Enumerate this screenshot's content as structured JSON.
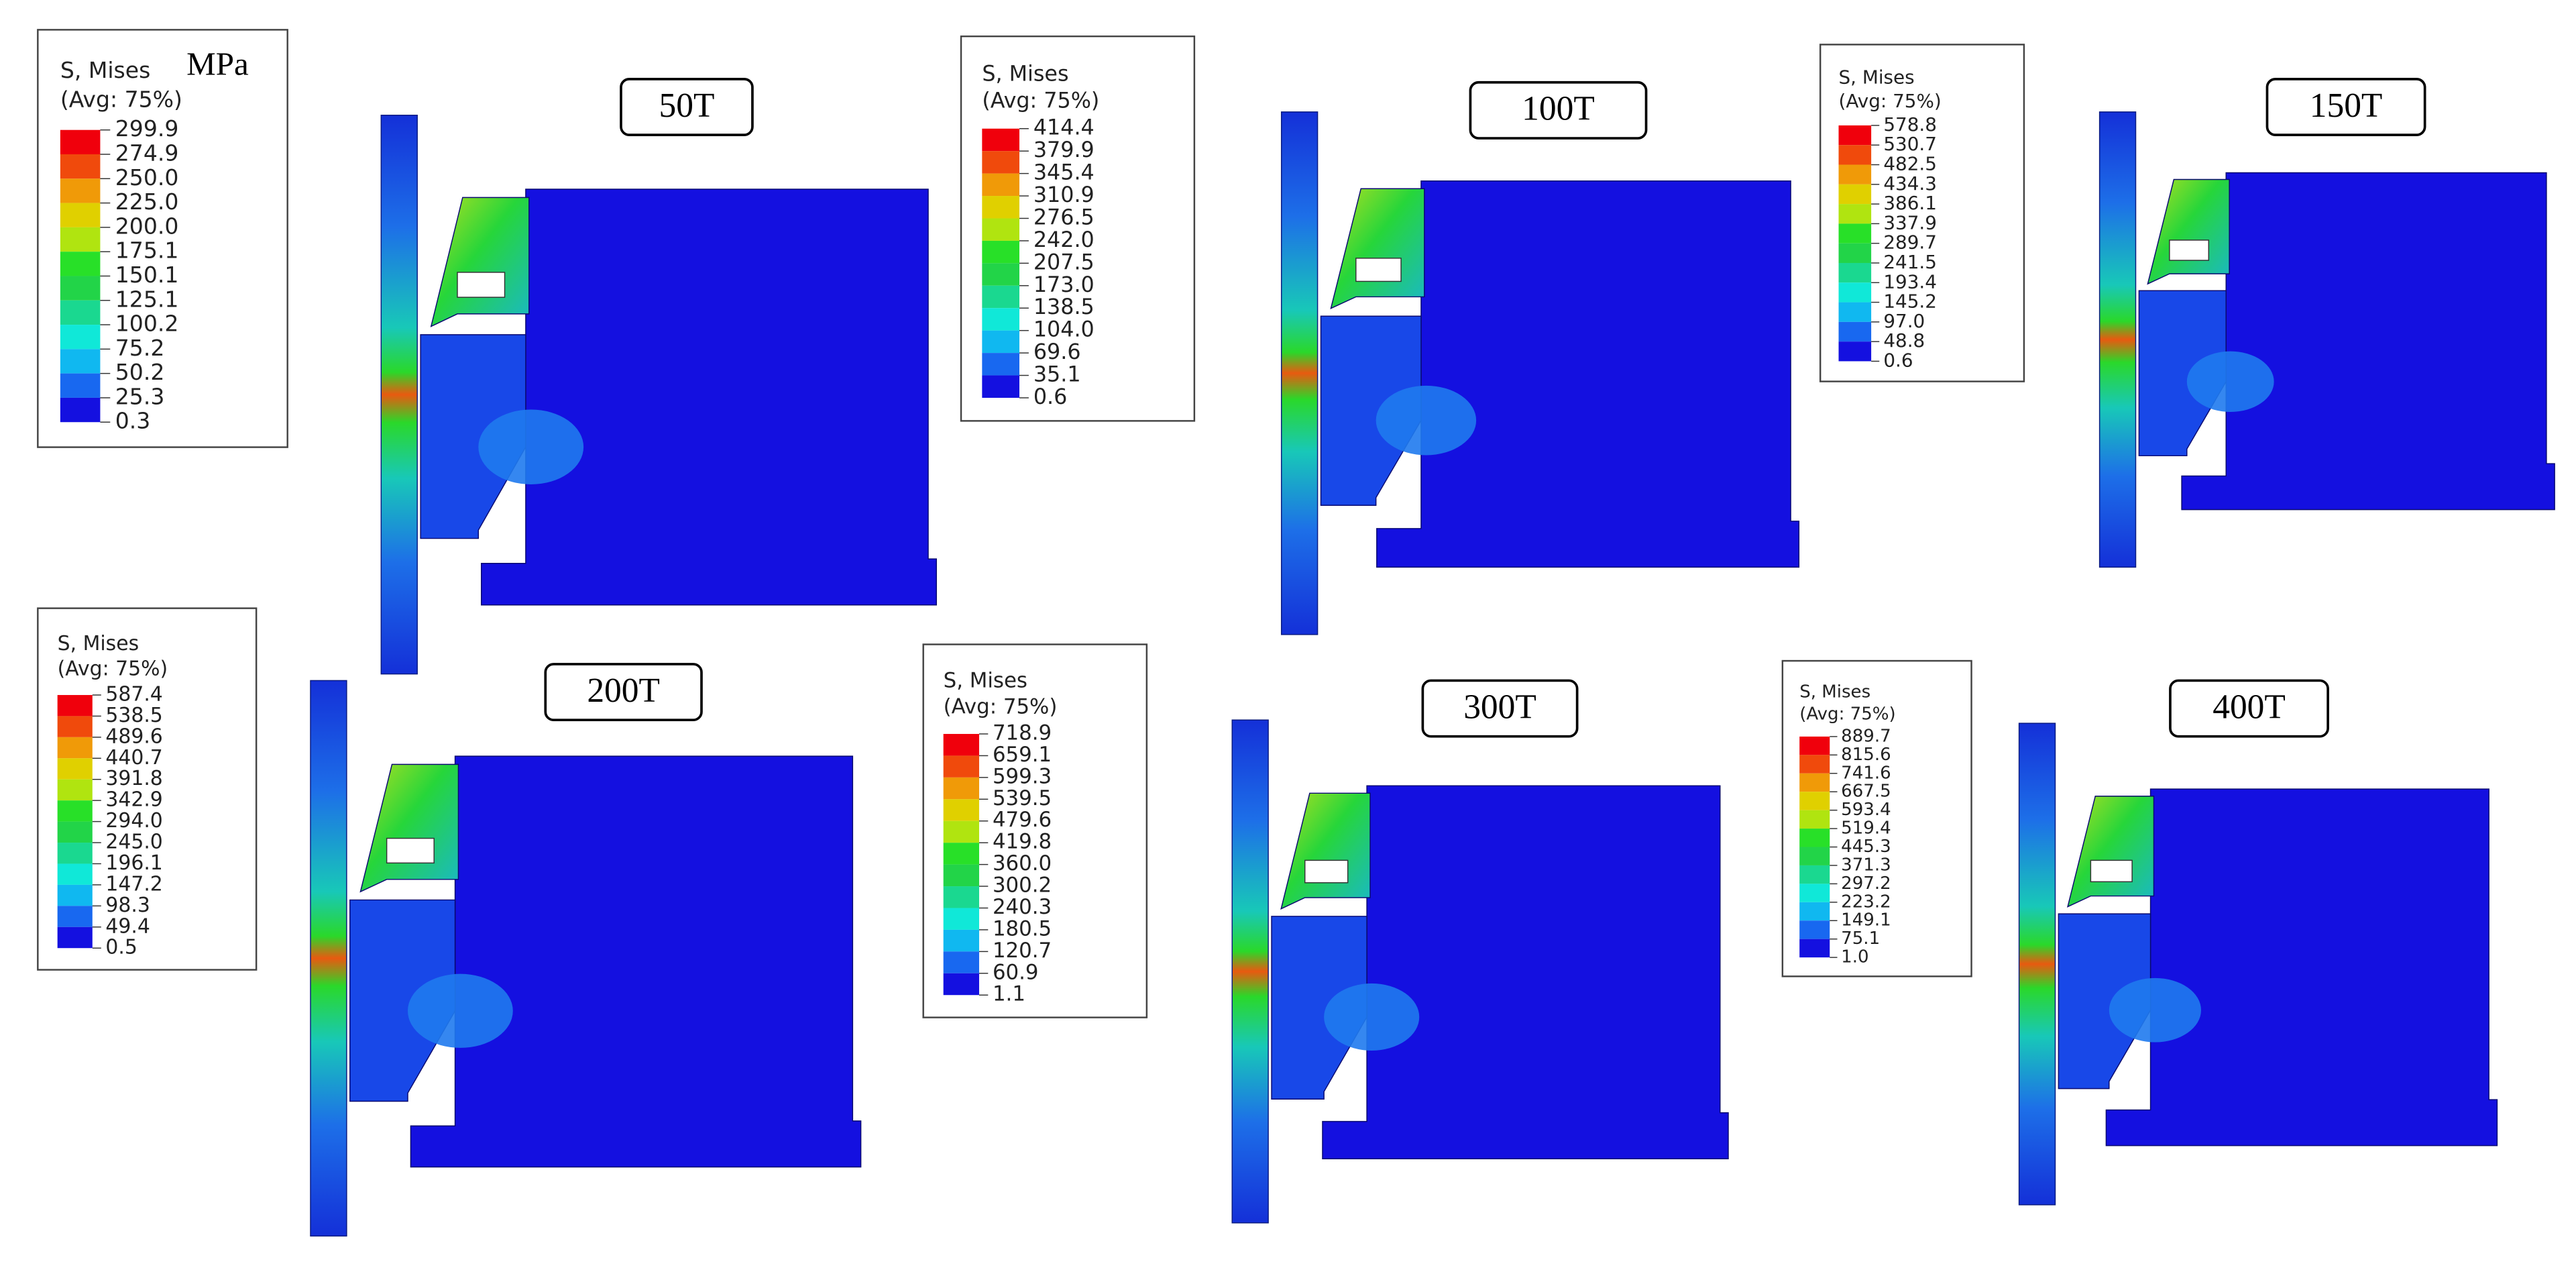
{
  "panels": [
    {
      "load": "50T",
      "legend": {
        "title": "S, Mises",
        "unit": "MPa",
        "average": "(Avg: 75%)",
        "values": [
          "299.9",
          "274.9",
          "250.0",
          "225.0",
          "200.0",
          "175.1",
          "150.1",
          "125.1",
          "100.2",
          "75.2",
          "50.2",
          "25.3",
          "0.3"
        ]
      }
    },
    {
      "load": "100T",
      "legend": {
        "title": "S, Mises",
        "average": "(Avg: 75%)",
        "values": [
          "414.4",
          "379.9",
          "345.4",
          "310.9",
          "276.5",
          "242.0",
          "207.5",
          "173.0",
          "138.5",
          "104.0",
          "69.6",
          "35.1",
          "0.6"
        ]
      }
    },
    {
      "load": "150T",
      "legend": {
        "title": "S, Mises",
        "average": "(Avg: 75%)",
        "values": [
          "578.8",
          "530.7",
          "482.5",
          "434.3",
          "386.1",
          "337.9",
          "289.7",
          "241.5",
          "193.4",
          "145.2",
          "97.0",
          "48.8",
          "0.6"
        ]
      }
    },
    {
      "load": "200T",
      "legend": {
        "title": "S, Mises",
        "average": "(Avg: 75%)",
        "values": [
          "587.4",
          "538.5",
          "489.6",
          "440.7",
          "391.8",
          "342.9",
          "294.0",
          "245.0",
          "196.1",
          "147.2",
          "98.3",
          "49.4",
          "0.5"
        ]
      }
    },
    {
      "load": "300T",
      "legend": {
        "title": "S, Mises",
        "average": "(Avg: 75%)",
        "values": [
          "718.9",
          "659.1",
          "599.3",
          "539.5",
          "479.6",
          "419.8",
          "360.0",
          "300.2",
          "240.3",
          "180.5",
          "120.7",
          "60.9",
          "1.1"
        ]
      }
    },
    {
      "load": "400T",
      "legend": {
        "title": "S, Mises",
        "average": "(Avg: 75%)",
        "values": [
          "889.7",
          "815.6",
          "741.6",
          "667.5",
          "593.4",
          "519.4",
          "445.3",
          "371.3",
          "297.2",
          "223.2",
          "149.1",
          "75.1",
          "1.0"
        ]
      }
    }
  ]
}
